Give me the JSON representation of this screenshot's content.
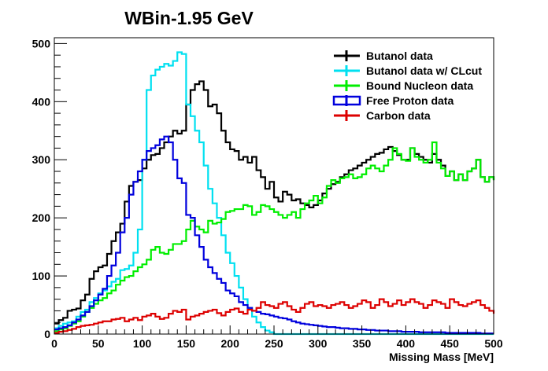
{
  "chart_data": {
    "type": "line",
    "title": "WBin-1.95 GeV",
    "xlabel": "Missing Mass [MeV]",
    "ylabel": "",
    "xlim": [
      0,
      500
    ],
    "ylim": [
      0,
      510
    ],
    "xticks": [
      0,
      50,
      100,
      150,
      200,
      250,
      300,
      350,
      400,
      450,
      500
    ],
    "yticks": [
      0,
      100,
      200,
      300,
      400,
      500
    ],
    "grid": false,
    "legend_position": "top-right",
    "bin_width": 5,
    "series": [
      {
        "name": "Butanol data",
        "color": "#000000",
        "values": [
          18,
          24,
          28,
          40,
          42,
          44,
          58,
          68,
          95,
          108,
          115,
          118,
          138,
          160,
          175,
          190,
          228,
          255,
          262,
          265,
          285,
          300,
          308,
          310,
          320,
          330,
          340,
          350,
          345,
          350,
          395,
          420,
          430,
          435,
          420,
          392,
          395,
          380,
          350,
          330,
          318,
          315,
          300,
          305,
          295,
          305,
          282,
          270,
          250,
          262,
          235,
          228,
          245,
          240,
          230,
          232,
          225,
          222,
          218,
          222,
          230,
          242,
          250,
          258,
          262,
          270,
          275,
          282,
          285,
          290,
          295,
          300,
          305,
          310,
          312,
          318,
          322,
          315,
          308,
          300,
          300,
          320,
          310,
          305,
          300,
          295,
          310,
          300,
          290,
          272,
          280,
          265,
          275,
          265,
          280,
          285,
          300,
          270,
          262,
          270,
          265
        ]
      },
      {
        "name": "Butanol data w/ CLcut",
        "color": "#00e0f0",
        "values": [
          10,
          14,
          18,
          20,
          22,
          30,
          38,
          42,
          55,
          62,
          70,
          75,
          82,
          90,
          95,
          110,
          112,
          118,
          140,
          180,
          300,
          420,
          445,
          455,
          460,
          465,
          462,
          470,
          485,
          482,
          395,
          375,
          350,
          330,
          290,
          250,
          225,
          200,
          170,
          140,
          122,
          100,
          80,
          60,
          45,
          30,
          20,
          12,
          6,
          3,
          0,
          0,
          0,
          0,
          0,
          0,
          0,
          0,
          0,
          0,
          0,
          0,
          0,
          0,
          0,
          0,
          0,
          0,
          0,
          0,
          0,
          0,
          0,
          0,
          0,
          0,
          0,
          0,
          0,
          0,
          0,
          0,
          0,
          0,
          0,
          0,
          0,
          0,
          0,
          0,
          0,
          0,
          0,
          0,
          0,
          0,
          0,
          0,
          0,
          0,
          0
        ]
      },
      {
        "name": "Bound Nucleon data",
        "color": "#00ee00",
        "values": [
          5,
          8,
          10,
          14,
          18,
          22,
          30,
          38,
          45,
          52,
          58,
          62,
          70,
          75,
          85,
          92,
          98,
          100,
          108,
          115,
          120,
          128,
          145,
          150,
          140,
          138,
          145,
          155,
          155,
          160,
          180,
          195,
          185,
          180,
          175,
          195,
          190,
          192,
          198,
          210,
          212,
          215,
          215,
          222,
          220,
          205,
          210,
          222,
          220,
          215,
          210,
          205,
          200,
          205,
          210,
          200,
          215,
          225,
          230,
          238,
          225,
          235,
          255,
          265,
          260,
          268,
          270,
          275,
          268,
          270,
          275,
          285,
          290,
          285,
          280,
          290,
          300,
          320,
          310,
          300,
          298,
          320,
          305,
          300,
          295,
          300,
          330,
          295,
          285,
          272,
          280,
          265,
          275,
          265,
          280,
          285,
          300,
          270,
          262,
          270,
          265
        ]
      },
      {
        "name": "Free Proton data",
        "color": "#0000dd",
        "values": [
          8,
          10,
          12,
          15,
          20,
          25,
          32,
          38,
          48,
          58,
          68,
          78,
          100,
          118,
          140,
          175,
          200,
          240,
          262,
          280,
          300,
          315,
          320,
          325,
          335,
          340,
          330,
          300,
          268,
          260,
          205,
          200,
          170,
          150,
          128,
          115,
          105,
          95,
          88,
          75,
          70,
          65,
          55,
          50,
          45,
          40,
          38,
          35,
          34,
          32,
          30,
          28,
          27,
          25,
          22,
          20,
          18,
          17,
          16,
          15,
          14,
          13,
          12,
          12,
          11,
          10,
          10,
          9,
          9,
          8,
          8,
          7,
          7,
          6,
          6,
          6,
          5,
          5,
          5,
          4,
          4,
          4,
          4,
          3,
          3,
          3,
          3,
          3,
          3,
          2,
          2,
          2,
          2,
          2,
          2,
          2,
          2,
          1,
          1,
          1,
          1
        ]
      },
      {
        "name": "Carbon data",
        "color": "#dd0000",
        "values": [
          2,
          4,
          5,
          7,
          9,
          12,
          14,
          15,
          16,
          18,
          20,
          22,
          22,
          25,
          26,
          28,
          22,
          25,
          28,
          24,
          30,
          32,
          35,
          30,
          26,
          28,
          35,
          40,
          38,
          42,
          25,
          30,
          32,
          35,
          38,
          40,
          42,
          36,
          32,
          38,
          42,
          44,
          38,
          35,
          42,
          40,
          45,
          55,
          50,
          48,
          45,
          52,
          55,
          48,
          42,
          38,
          45,
          52,
          55,
          48,
          50,
          48,
          45,
          50,
          52,
          55,
          50,
          45,
          48,
          52,
          58,
          55,
          45,
          50,
          60,
          55,
          48,
          52,
          58,
          50,
          55,
          60,
          55,
          52,
          45,
          50,
          58,
          55,
          52,
          45,
          60,
          55,
          50,
          48,
          52,
          55,
          58,
          50,
          45,
          40,
          35
        ]
      }
    ]
  }
}
